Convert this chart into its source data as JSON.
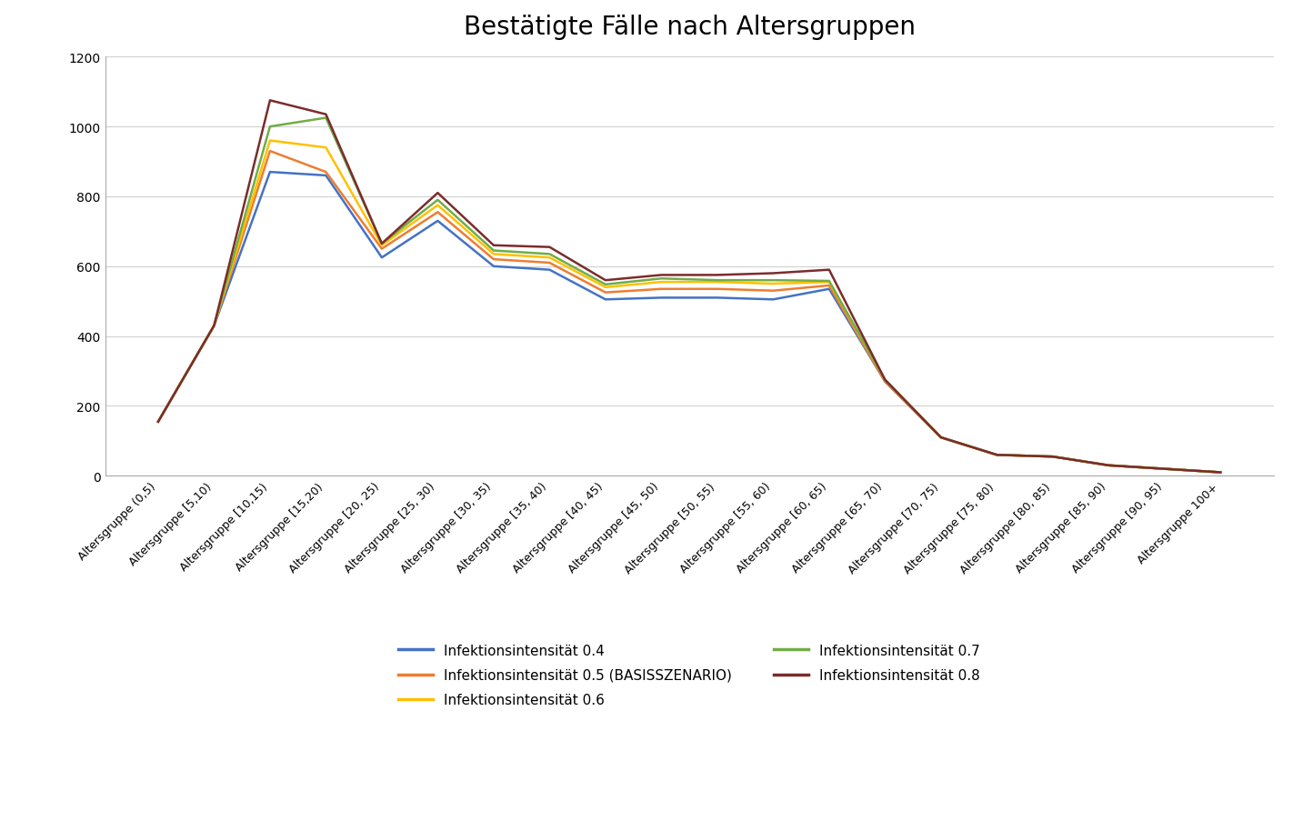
{
  "title": "Bestätigte Fälle nach Altersgruppen",
  "categories": [
    "Altersgruppe (0,5)",
    "Altersgruppe [5,10)",
    "Altersgruppe [10,15)",
    "Altersgruppe [15,20)",
    "Altersgruppe [20, 25)",
    "Altersgruppe [25, 30)",
    "Altersgruppe [30, 35)",
    "Altersgruppe [35, 40)",
    "Altersgruppe [40, 45)",
    "Altersgruppe [45, 50)",
    "Altersgruppe [50, 55)",
    "Altersgruppe [55, 60)",
    "Altersgruppe [60, 65)",
    "Altersgruppe [65, 70)",
    "Altersgruppe [70, 75)",
    "Altersgruppe [75, 80)",
    "Altersgruppe [80, 85)",
    "Altersgruppe [85, 90)",
    "Altersgruppe [90, 95)",
    "Altersgruppe 100+"
  ],
  "series": [
    {
      "label": "Infektionsintensität 0.4",
      "color": "#4472C4",
      "values": [
        155,
        430,
        870,
        860,
        625,
        730,
        600,
        590,
        505,
        510,
        510,
        505,
        535,
        270,
        110,
        60,
        55,
        30,
        20,
        10
      ]
    },
    {
      "label": "Infektionsintensität 0.5 (BASISSZENARIO)",
      "color": "#ED7D31",
      "values": [
        155,
        430,
        930,
        870,
        650,
        755,
        620,
        610,
        525,
        535,
        535,
        530,
        545,
        270,
        110,
        60,
        55,
        30,
        20,
        10
      ]
    },
    {
      "label": "Infektionsintensität 0.6",
      "color": "#FFC000",
      "values": [
        155,
        430,
        960,
        940,
        660,
        775,
        635,
        625,
        540,
        555,
        555,
        550,
        555,
        275,
        110,
        60,
        55,
        30,
        20,
        10
      ]
    },
    {
      "label": "Infektionsintensität 0.7",
      "color": "#70AD47",
      "values": [
        155,
        430,
        1000,
        1025,
        665,
        790,
        645,
        635,
        548,
        565,
        560,
        560,
        558,
        275,
        110,
        60,
        55,
        30,
        20,
        10
      ]
    },
    {
      "label": "Infektionsintensität 0.8",
      "color": "#7B2C2C",
      "values": [
        155,
        430,
        1075,
        1035,
        665,
        810,
        660,
        655,
        560,
        575,
        575,
        580,
        590,
        275,
        110,
        60,
        55,
        30,
        20,
        10
      ]
    }
  ],
  "ylim": [
    0,
    1200
  ],
  "yticks": [
    0,
    200,
    400,
    600,
    800,
    1000,
    1200
  ],
  "background_color": "#ffffff",
  "title_fontsize": 20,
  "tick_fontsize": 10,
  "xtick_fontsize": 9
}
